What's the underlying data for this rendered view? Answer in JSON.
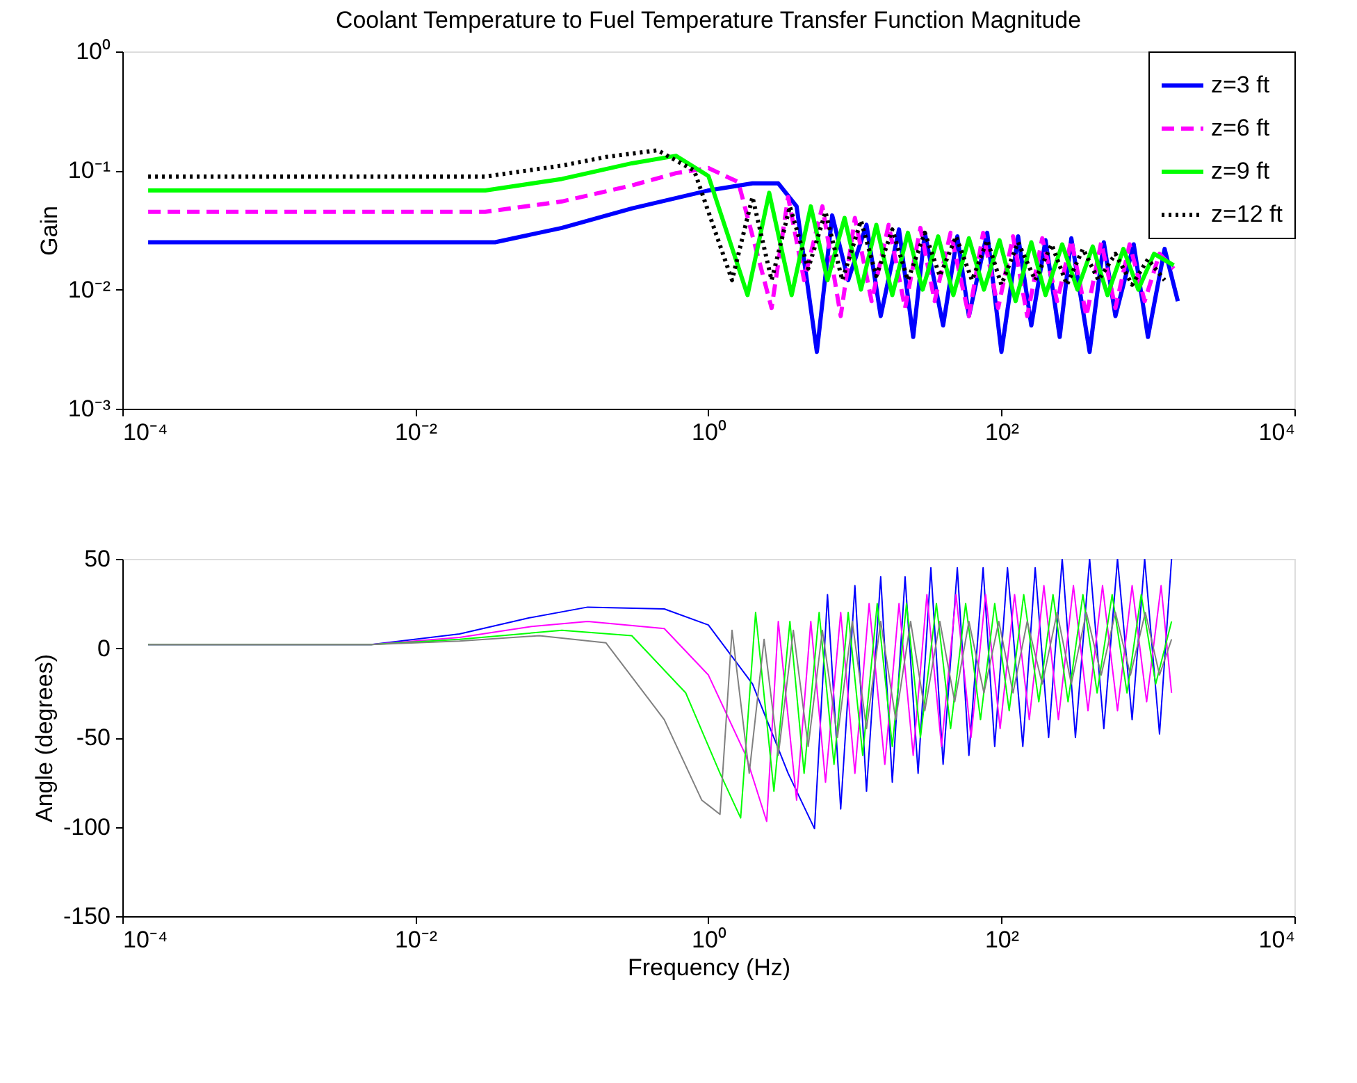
{
  "chart_data": [
    {
      "type": "line",
      "title": "Coolant Temperature to Fuel Temperature Transfer Function Magnitude",
      "ylabel": "Gain",
      "log": "xy",
      "grid": false,
      "legend": "top right",
      "xlim": [
        0.0001,
        10000
      ],
      "xticks": [
        {
          "value": 0.0001,
          "label": "10⁻⁴"
        },
        {
          "value": 0.01,
          "label": "10⁻²"
        },
        {
          "value": 1,
          "label": "10⁰"
        },
        {
          "value": 100,
          "label": "10²"
        },
        {
          "value": 10000,
          "label": "10⁴"
        }
      ],
      "ylim": [
        0.001,
        1
      ],
      "yticks": [
        {
          "value": 0.001,
          "label": "10⁻³"
        },
        {
          "value": 0.01,
          "label": "10⁻²"
        },
        {
          "value": 0.1,
          "label": "10⁻¹"
        },
        {
          "value": 1,
          "label": "10⁰"
        }
      ],
      "series": [
        {
          "name": "z=3 ft",
          "color": "#0000ff",
          "line_style": "solid",
          "x": [
            0.00015,
            0.035,
            0.1,
            0.3,
            1,
            2,
            3,
            4,
            5.5,
            7,
            9,
            12,
            15,
            20,
            25,
            30,
            40,
            50,
            60,
            80,
            100,
            130,
            160,
            200,
            250,
            300,
            400,
            500,
            600,
            800,
            1000,
            1300,
            1600
          ],
          "values": [
            0.025,
            0.025,
            0.033,
            0.048,
            0.068,
            0.078,
            0.078,
            0.05,
            0.003,
            0.042,
            0.012,
            0.035,
            0.006,
            0.032,
            0.004,
            0.03,
            0.005,
            0.028,
            0.006,
            0.03,
            0.003,
            0.028,
            0.005,
            0.026,
            0.004,
            0.027,
            0.003,
            0.025,
            0.006,
            0.024,
            0.004,
            0.022,
            0.008
          ]
        },
        {
          "name": "z=6 ft",
          "color": "#ff00ff",
          "line_style": "dashed",
          "x": [
            0.00015,
            0.03,
            0.1,
            0.3,
            0.6,
            1,
            1.6,
            2.7,
            3.5,
            4.5,
            6,
            8,
            10,
            13,
            17,
            22,
            28,
            35,
            45,
            60,
            75,
            95,
            120,
            150,
            190,
            240,
            300,
            380,
            480,
            600,
            750,
            950,
            1200,
            1500
          ],
          "values": [
            0.045,
            0.045,
            0.055,
            0.075,
            0.095,
            0.105,
            0.08,
            0.007,
            0.06,
            0.012,
            0.05,
            0.006,
            0.04,
            0.008,
            0.035,
            0.007,
            0.033,
            0.008,
            0.03,
            0.006,
            0.03,
            0.007,
            0.028,
            0.006,
            0.027,
            0.008,
            0.026,
            0.006,
            0.025,
            0.007,
            0.024,
            0.008,
            0.02,
            0.015
          ]
        },
        {
          "name": "z=9 ft",
          "color": "#00ff00",
          "line_style": "solid",
          "x": [
            0.00015,
            0.03,
            0.1,
            0.3,
            0.6,
            1,
            1.85,
            2.6,
            3.7,
            5,
            6.5,
            8.5,
            11,
            14,
            18,
            23,
            29,
            37,
            47,
            60,
            76,
            97,
            125,
            160,
            200,
            260,
            330,
            420,
            530,
            680,
            860,
            1100,
            1500
          ],
          "values": [
            0.068,
            0.068,
            0.085,
            0.115,
            0.133,
            0.09,
            0.009,
            0.065,
            0.009,
            0.05,
            0.012,
            0.04,
            0.01,
            0.035,
            0.009,
            0.03,
            0.01,
            0.028,
            0.009,
            0.027,
            0.01,
            0.026,
            0.008,
            0.025,
            0.009,
            0.024,
            0.01,
            0.023,
            0.009,
            0.022,
            0.01,
            0.02,
            0.016
          ]
        },
        {
          "name": "z=12 ft",
          "color": "#000000",
          "line_style": "dotted",
          "x": [
            0.00015,
            0.03,
            0.1,
            0.2,
            0.45,
            0.8,
            1.45,
            2,
            2.7,
            3.6,
            4.8,
            6.3,
            8.2,
            11,
            14,
            18,
            23,
            30,
            38,
            49,
            63,
            80,
            100,
            130,
            170,
            220,
            280,
            360,
            460,
            600,
            780,
            1000,
            1300
          ],
          "values": [
            0.089,
            0.089,
            0.11,
            0.13,
            0.148,
            0.1,
            0.012,
            0.06,
            0.012,
            0.05,
            0.015,
            0.045,
            0.012,
            0.038,
            0.013,
            0.032,
            0.012,
            0.03,
            0.013,
            0.028,
            0.012,
            0.026,
            0.011,
            0.025,
            0.012,
            0.024,
            0.011,
            0.022,
            0.012,
            0.02,
            0.011,
            0.018,
            0.012
          ]
        }
      ]
    },
    {
      "type": "line",
      "xlabel": "Frequency (Hz)",
      "ylabel": "Angle (degrees)",
      "log": "x",
      "grid": false,
      "xlim": [
        0.0001,
        10000
      ],
      "xticks": [
        {
          "value": 0.0001,
          "label": "10⁻⁴"
        },
        {
          "value": 0.01,
          "label": "10⁻²"
        },
        {
          "value": 1,
          "label": "10⁰"
        },
        {
          "value": 100,
          "label": "10²"
        },
        {
          "value": 10000,
          "label": "10⁴"
        }
      ],
      "ylim": [
        -150,
        50
      ],
      "yticks": [
        -150,
        -100,
        -50,
        0,
        50
      ],
      "series": [
        {
          "color": "#0000ff",
          "line_style": "solid",
          "x": [
            0.00015,
            0.005,
            0.02,
            0.06,
            0.15,
            0.5,
            1,
            2,
            3.5,
            5.3,
            6.5,
            8,
            10,
            12,
            15,
            18,
            22,
            27,
            33,
            40,
            50,
            60,
            75,
            90,
            110,
            140,
            170,
            210,
            260,
            320,
            400,
            500,
            620,
            780,
            950,
            1200,
            1450
          ],
          "values": [
            2,
            2,
            8,
            17,
            23,
            22,
            13,
            -20,
            -70,
            -101,
            30,
            -90,
            35,
            -80,
            40,
            -75,
            40,
            -70,
            45,
            -65,
            45,
            -60,
            45,
            -55,
            45,
            -55,
            45,
            -50,
            50,
            -50,
            50,
            -45,
            50,
            -40,
            50,
            -48,
            50
          ]
        },
        {
          "color": "#ff00ff",
          "line_style": "solid",
          "x": [
            0.00015,
            0.005,
            0.02,
            0.06,
            0.15,
            0.5,
            1,
            1.8,
            2.5,
            3,
            4,
            5,
            6.3,
            8,
            10,
            12.5,
            16,
            20,
            25,
            31,
            39,
            49,
            62,
            78,
            98,
            123,
            155,
            195,
            245,
            310,
            390,
            490,
            620,
            780,
            980,
            1230,
            1450
          ],
          "values": [
            2,
            2,
            6,
            12,
            15,
            11,
            -15,
            -60,
            -97,
            15,
            -85,
            15,
            -75,
            20,
            -70,
            25,
            -65,
            25,
            -60,
            30,
            -55,
            30,
            -50,
            30,
            -45,
            30,
            -40,
            35,
            -40,
            35,
            -35,
            35,
            -35,
            35,
            -30,
            35,
            -25
          ]
        },
        {
          "color": "#00ff00",
          "line_style": "solid",
          "x": [
            0.00015,
            0.005,
            0.02,
            0.1,
            0.3,
            0.7,
            1.2,
            1.66,
            2.1,
            2.8,
            3.6,
            4.5,
            5.7,
            7.2,
            9,
            11.3,
            14.2,
            18,
            22.5,
            28,
            36,
            45,
            57,
            72,
            90,
            113,
            142,
            180,
            225,
            285,
            360,
            450,
            570,
            720,
            900,
            1130,
            1450
          ],
          "values": [
            2,
            2,
            5,
            10,
            7,
            -25,
            -70,
            -95,
            20,
            -80,
            15,
            -70,
            20,
            -65,
            20,
            -60,
            25,
            -55,
            25,
            -50,
            25,
            -45,
            25,
            -40,
            25,
            -35,
            30,
            -30,
            30,
            -30,
            30,
            -25,
            30,
            -25,
            30,
            -20,
            15
          ]
        },
        {
          "color": "#808080",
          "line_style": "solid",
          "x": [
            0.00015,
            0.005,
            0.02,
            0.07,
            0.2,
            0.5,
            0.9,
            1.2,
            1.45,
            1.9,
            2.4,
            3,
            3.8,
            4.8,
            6,
            7.6,
            9.6,
            12,
            15,
            19,
            24,
            30,
            38,
            48,
            60,
            76,
            96,
            120,
            150,
            190,
            240,
            300,
            380,
            480,
            600,
            760,
            960,
            1200,
            1450
          ],
          "values": [
            2,
            2,
            4,
            7,
            3,
            -40,
            -85,
            -93,
            10,
            -70,
            5,
            -60,
            10,
            -55,
            10,
            -50,
            15,
            -45,
            15,
            -40,
            15,
            -35,
            15,
            -30,
            15,
            -25,
            15,
            -25,
            15,
            -20,
            20,
            -20,
            20,
            -15,
            20,
            -15,
            20,
            -15,
            5
          ]
        }
      ]
    }
  ]
}
